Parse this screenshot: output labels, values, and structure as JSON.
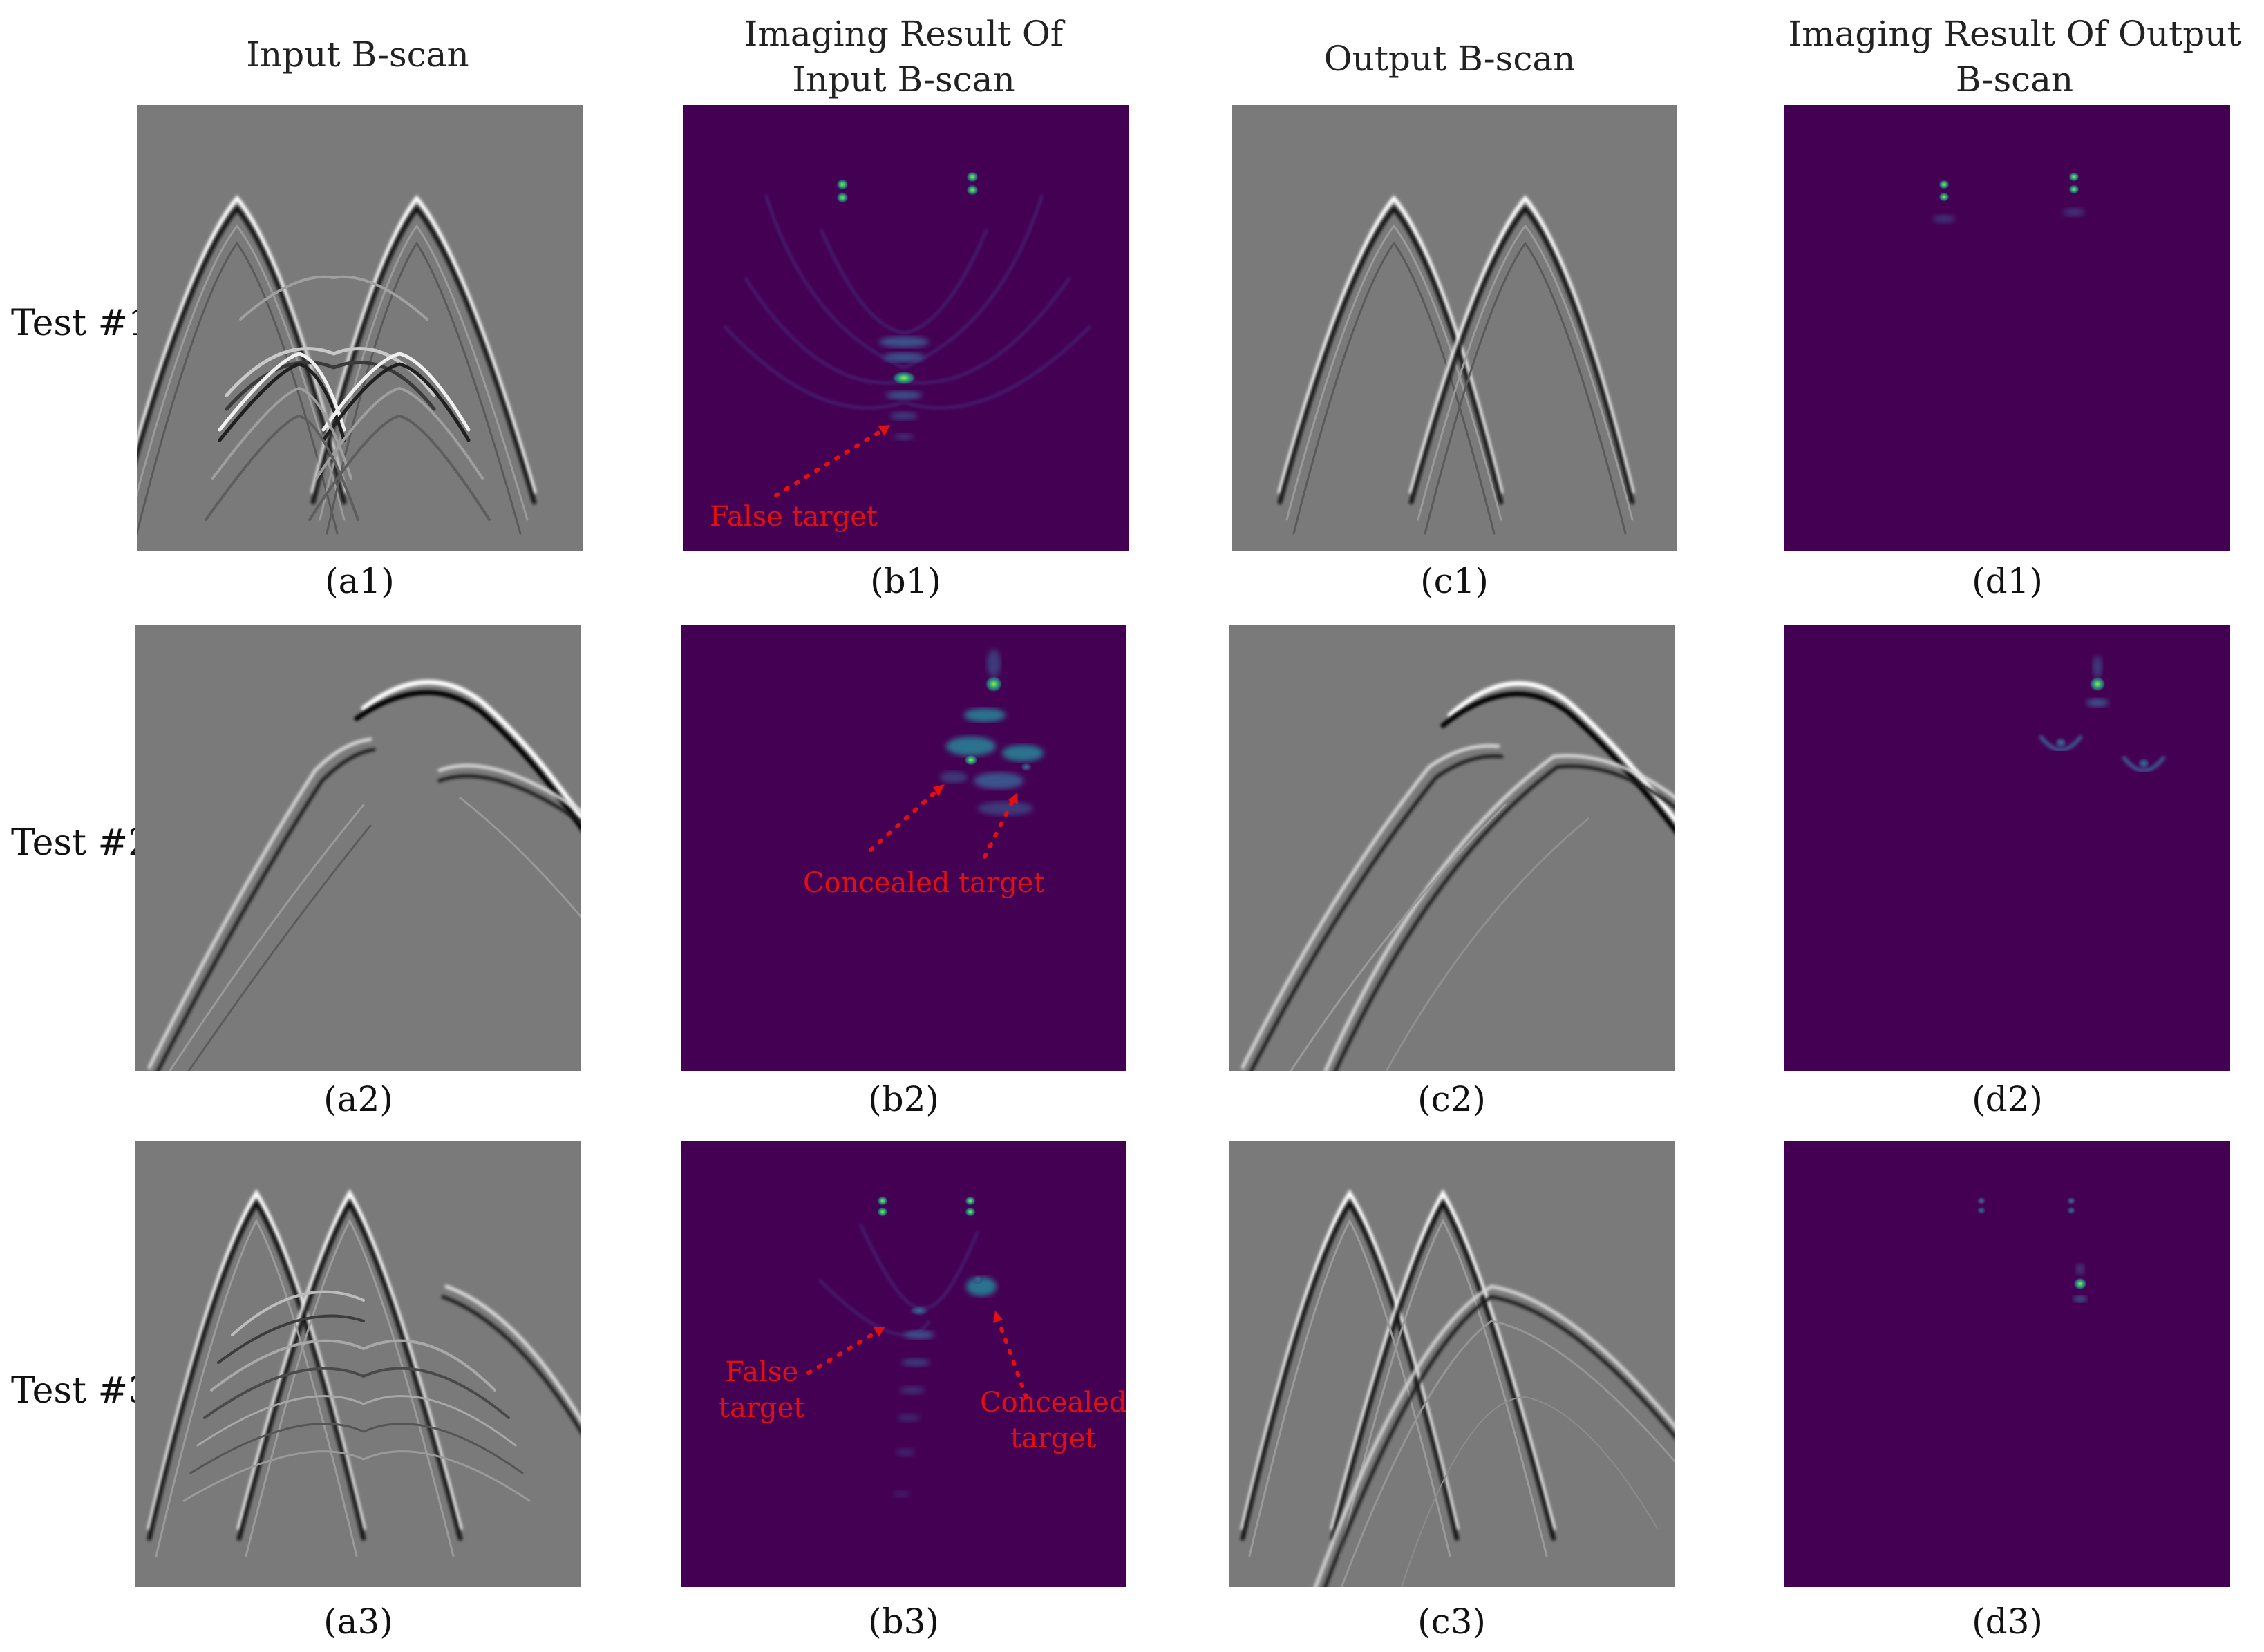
{
  "columns": [
    {
      "title_line1": "Input B-scan",
      "title_line2": ""
    },
    {
      "title_line1": "Imaging Result Of",
      "title_line2": "Input B-scan"
    },
    {
      "title_line1": "Output B-scan",
      "title_line2": ""
    },
    {
      "title_line1": "Imaging Result Of Output",
      "title_line2": "B-scan"
    }
  ],
  "rows": [
    {
      "label": "Test #1",
      "captions": [
        "(a1)",
        "(b1)",
        "(c1)",
        "(d1)"
      ]
    },
    {
      "label": "Test #2",
      "captions": [
        "(a2)",
        "(b2)",
        "(c2)",
        "(d2)"
      ]
    },
    {
      "label": "Test #3",
      "captions": [
        "(a3)",
        "(b3)",
        "(c3)",
        "(d3)"
      ]
    }
  ],
  "annotations": {
    "b1": {
      "text": "False target"
    },
    "b2": {
      "text": "Concealed target"
    },
    "b3_false_line1": "False",
    "b3_false_line2": "target",
    "b3_concealed_line1": "Concealed",
    "b3_concealed_line2": "target"
  },
  "colors": {
    "bscan_background": "#7a7a7a",
    "imaging_background": "#440154",
    "target_bright": "#5ec962",
    "target_mid": "#21918c",
    "annotation_red": "#e01010"
  }
}
